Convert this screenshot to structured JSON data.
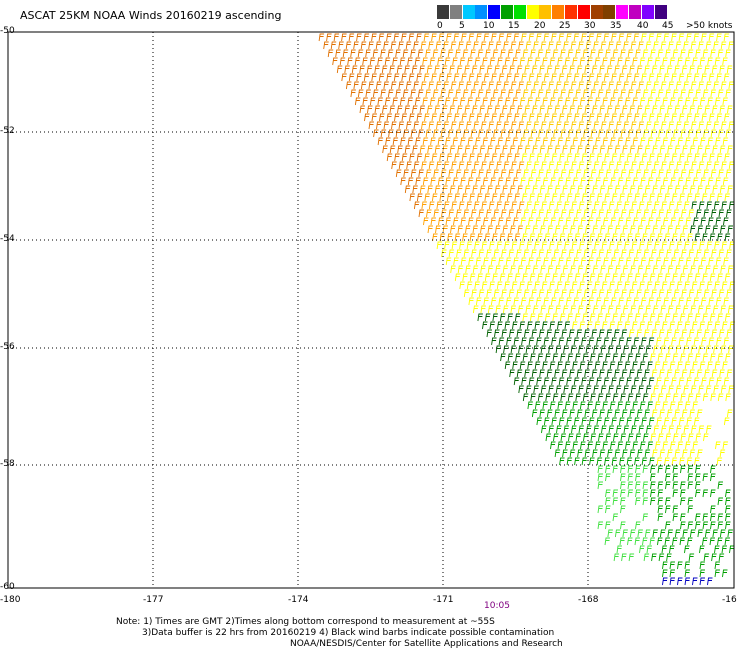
{
  "title": "ASCAT 25KM NOAA Winds 20160219 ascending",
  "colorbar": {
    "colors": [
      "#3a3a3a",
      "#808080",
      "#00c8ff",
      "#0090ff",
      "#0000ff",
      "#00a000",
      "#00e000",
      "#ffff00",
      "#ffc000",
      "#ff8000",
      "#ff3000",
      "#ff0000",
      "#a04000",
      "#804000",
      "#ff00ff",
      "#c000c0",
      "#8000ff",
      "#400080"
    ],
    "labels": [
      "0",
      "5",
      "10",
      "15",
      "20",
      "25",
      "30",
      "35",
      "40",
      "45",
      ">50 knots"
    ]
  },
  "map": {
    "lat_labels": [
      "-50",
      "-52",
      "-54",
      "-56",
      "-58",
      "-60"
    ],
    "lon_labels": [
      "-180",
      "-177",
      "-174",
      "-171",
      "-168",
      "-16"
    ],
    "time_label": "10:05"
  },
  "notes": [
    "Note: 1) Times are GMT 2)Times along bottom correspond to measurement at ~55S",
    "3)Data buffer is 22 hrs from 20160219 4) Black wind barbs indicate possible contamination",
    "NOAA/NESDIS/Center for Satellite Applications and Research"
  ],
  "barb_colors": {
    "orange_dark": "#e07000",
    "orange": "#ffa000",
    "yellow_orange": "#ffcc00",
    "yellow": "#ffff00",
    "green_dark": "#006000",
    "green": "#00a000",
    "green_light": "#40e040",
    "blue": "#0000c0"
  }
}
